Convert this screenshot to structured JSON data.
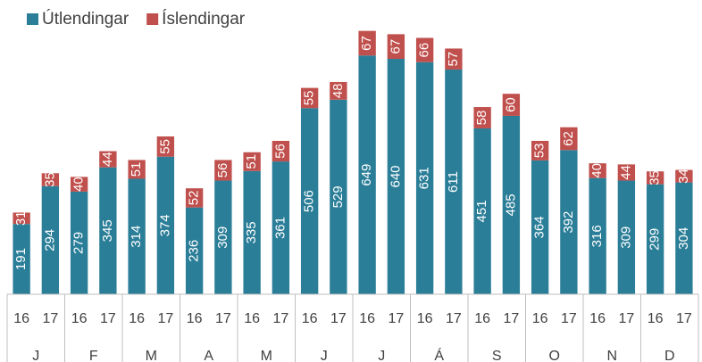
{
  "chart_data": {
    "type": "stacked_bar",
    "categories": [
      "16",
      "17",
      "16",
      "17",
      "16",
      "17",
      "16",
      "17",
      "16",
      "17",
      "16",
      "17",
      "16",
      "17",
      "16",
      "17",
      "16",
      "17",
      "16",
      "17",
      "16",
      "17",
      "16",
      "17"
    ],
    "category_groups": [
      "J",
      "F",
      "M",
      "A",
      "M",
      "J",
      "J",
      "Á",
      "S",
      "O",
      "N",
      "D"
    ],
    "series": [
      {
        "name": "Útlendingar",
        "color": "#2b7e98",
        "values": [
          191,
          294,
          279,
          345,
          314,
          374,
          236,
          309,
          335,
          361,
          506,
          529,
          649,
          640,
          631,
          611,
          451,
          485,
          364,
          392,
          316,
          309,
          299,
          304
        ]
      },
      {
        "name": "Íslendingar",
        "color": "#c0504d",
        "values": [
          31,
          35,
          40,
          44,
          51,
          55,
          52,
          56,
          51,
          56,
          55,
          48,
          67,
          67,
          66,
          57,
          58,
          60,
          53,
          62,
          40,
          44,
          35,
          34
        ]
      }
    ],
    "ylim": [
      0,
      800
    ],
    "legend": "top-left"
  }
}
